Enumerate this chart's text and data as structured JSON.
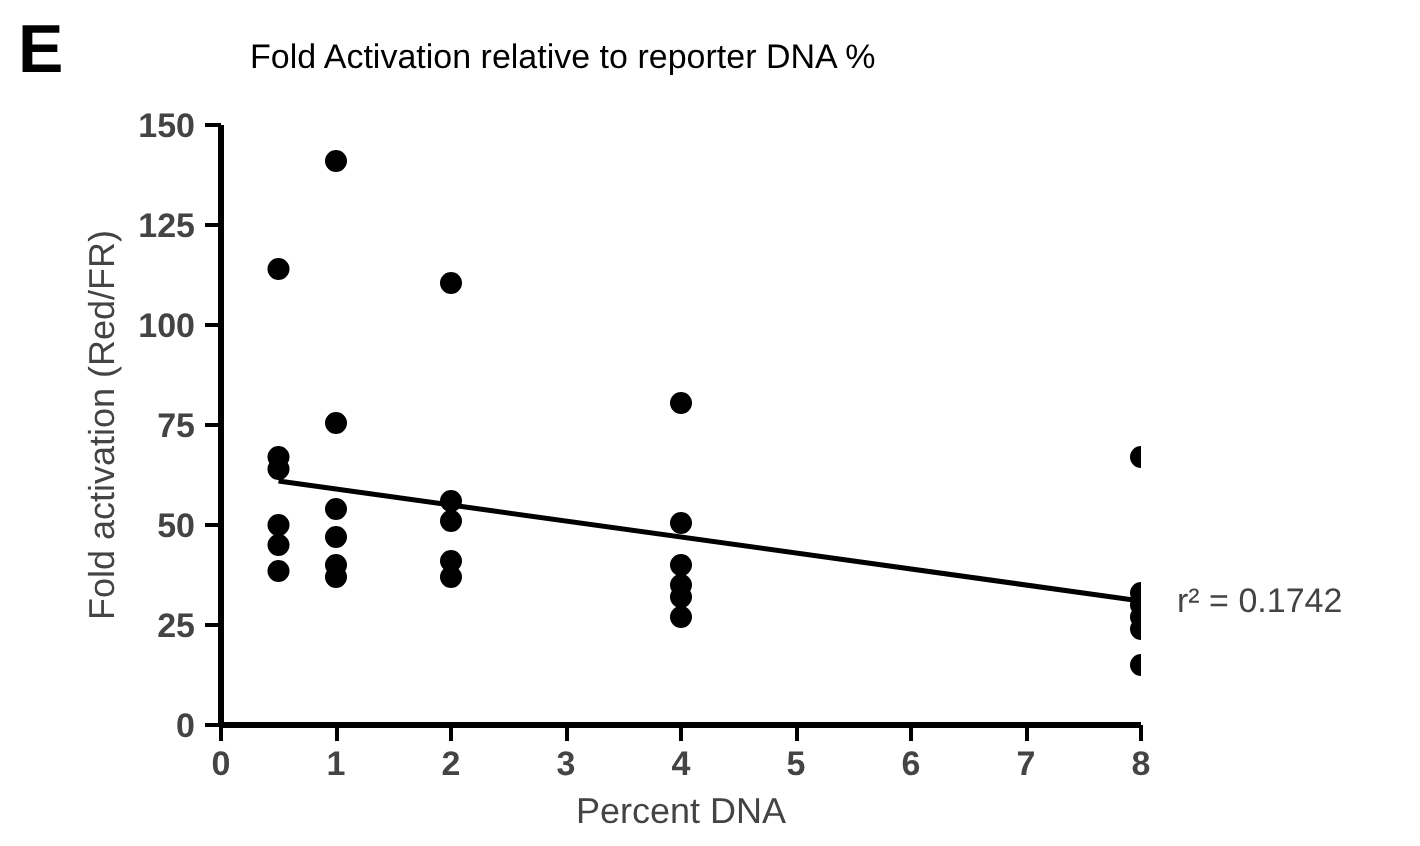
{
  "chart_data": {
    "type": "scatter",
    "title": "Fold Activation relative to reporter DNA %",
    "xlabel": "Percent DNA",
    "ylabel": "Fold activation (Red/FR)",
    "xlim": [
      0,
      8
    ],
    "xticks": [
      0,
      1,
      2,
      3,
      4,
      5,
      6,
      7,
      8
    ],
    "ylim": [
      0,
      150
    ],
    "yticks": [
      0,
      25,
      50,
      75,
      100,
      125,
      150
    ],
    "grid": false,
    "annotations": [
      "E",
      {
        "text": "r² = 0.1742",
        "x": 8,
        "y": 31
      }
    ],
    "series": [
      {
        "marker": "circle",
        "color": "#000000",
        "x": [
          0.5,
          0.5,
          0.5,
          0.5,
          0.5,
          0.5,
          1,
          1,
          1,
          1,
          1,
          1,
          2,
          2,
          2,
          2,
          2,
          4,
          4,
          4,
          4,
          4,
          4,
          8,
          8,
          8,
          8,
          8,
          8
        ],
        "values": [
          114,
          67,
          64,
          50,
          45,
          38.5,
          141,
          75.5,
          54,
          47,
          40,
          37,
          110.5,
          56,
          51,
          41,
          37,
          80.5,
          50.5,
          40,
          35,
          32,
          27,
          67,
          33,
          30,
          27,
          24,
          15
        ]
      },
      {
        "type": "line",
        "color": "#000000",
        "x": [
          0.5,
          8
        ],
        "values": [
          61,
          31
        ],
        "line_style": "solid"
      }
    ]
  }
}
